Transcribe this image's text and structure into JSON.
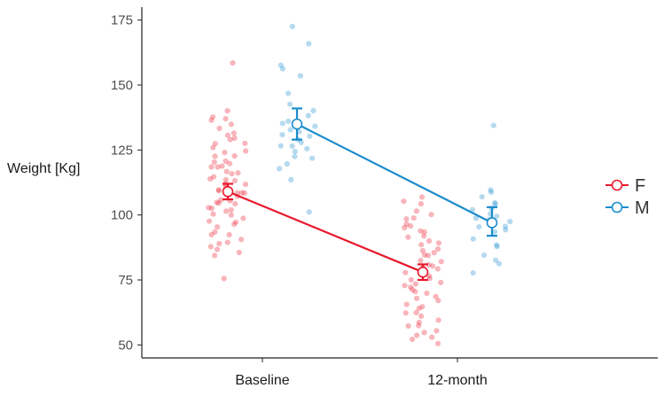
{
  "chart_data": {
    "type": "scatter",
    "title": "",
    "xlabel": "",
    "ylabel": "Weight [Kg]",
    "ylim": [
      45,
      180
    ],
    "yticks": [
      50,
      75,
      100,
      125,
      150,
      175
    ],
    "categories": [
      "Baseline",
      "12-month"
    ],
    "grid": false,
    "legend_position": "right",
    "series": [
      {
        "name": "F",
        "color": "#e8192c",
        "means": [
          109,
          78
        ],
        "error_low": [
          106,
          75
        ],
        "error_high": [
          112,
          81
        ],
        "points": [
          [
            140,
            138,
            137,
            136,
            135,
            133,
            132,
            131,
            130,
            129,
            128,
            127,
            126,
            125,
            124,
            123,
            122,
            121,
            120,
            120,
            119,
            118,
            118,
            117,
            116,
            116,
            115,
            114,
            114,
            113,
            112,
            112,
            111,
            110,
            110,
            109,
            109,
            108,
            108,
            107,
            106,
            106,
            105,
            104,
            104,
            103,
            102,
            102,
            101,
            100,
            100,
            99,
            98,
            97,
            96,
            95,
            94,
            93,
            92,
            91,
            90,
            89,
            88,
            87,
            86,
            85,
            159,
            76
          ],
          [
            107,
            105,
            104,
            101,
            100,
            99,
            98,
            97,
            96,
            95,
            94,
            93,
            92,
            91,
            90,
            89,
            88,
            87,
            86,
            85,
            84,
            84,
            83,
            82,
            81,
            80,
            80,
            79,
            78,
            77,
            77,
            76,
            75,
            74,
            74,
            73,
            72,
            71,
            70,
            70,
            69,
            68,
            67,
            66,
            65,
            64,
            63,
            62,
            61,
            60,
            59,
            58,
            57,
            56,
            55,
            54,
            53,
            52,
            50
          ]
        ]
      },
      {
        "name": "M",
        "color": "#1a8ccc",
        "means": [
          135,
          97
        ],
        "error_low": [
          129,
          92
        ],
        "error_high": [
          141,
          103
        ],
        "points": [
          [
            172,
            166,
            158,
            156,
            153,
            147,
            143,
            140,
            138,
            136,
            135,
            134,
            133,
            132,
            131,
            130,
            129,
            128,
            127,
            126,
            125,
            124,
            123,
            122,
            120,
            118,
            113,
            101
          ],
          [
            135,
            110,
            109,
            107,
            105,
            104,
            103,
            102,
            101,
            100,
            99,
            98,
            97,
            96,
            95,
            94,
            93,
            91,
            89,
            88,
            84,
            83,
            81,
            78
          ]
        ]
      }
    ]
  }
}
